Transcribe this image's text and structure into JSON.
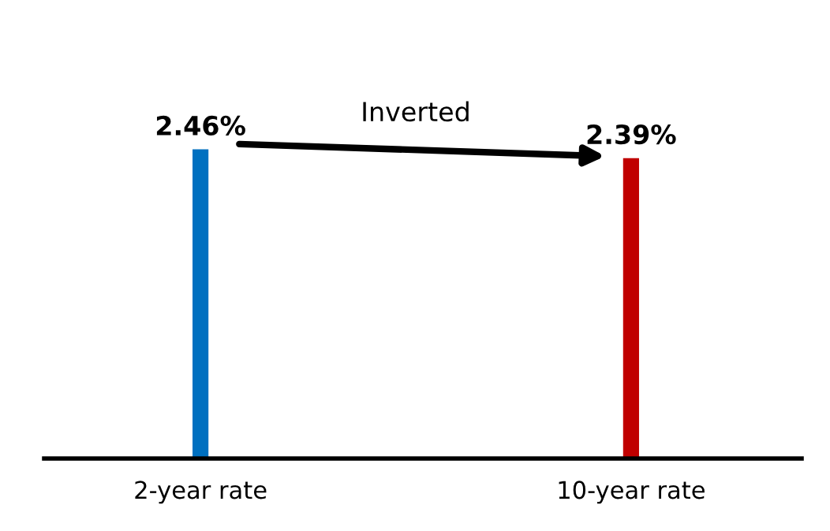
{
  "chart_data": {
    "type": "bar",
    "categories": [
      "2-year rate",
      "10-year rate"
    ],
    "values": [
      2.46,
      2.39
    ],
    "colors": [
      "#0070c0",
      "#c00000"
    ],
    "value_labels": [
      "2.46%",
      "2.39%"
    ],
    "tick_labels": "x",
    "annotations": [
      "Inverted"
    ],
    "grid": false,
    "legend": false
  }
}
